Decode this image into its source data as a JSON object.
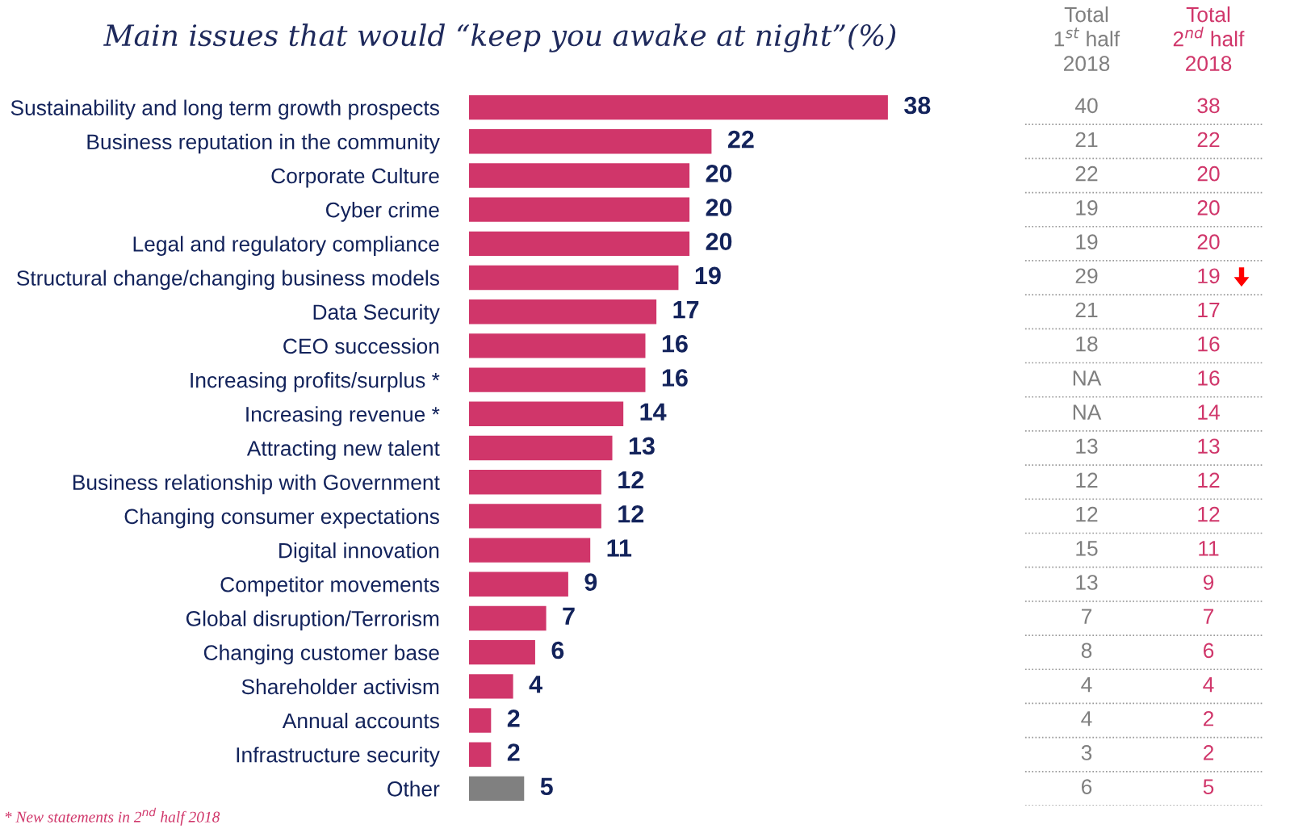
{
  "chart_data": [
    {
      "type": "bar",
      "orientation": "horizontal",
      "title": "Main issues that would “keep you awake at night”(%)",
      "categories": [
        "Sustainability and long term growth prospects",
        "Business reputation in the community",
        "Corporate Culture",
        "Cyber crime",
        "Legal and regulatory compliance",
        "Structural change/changing business models",
        "Data Security",
        "CEO succession",
        "Increasing profits/surplus *",
        "Increasing revenue *",
        "Attracting new talent",
        "Business relationship with Government",
        "Changing consumer expectations",
        "Digital innovation",
        "Competitor movements",
        "Global disruption/Terrorism",
        "Changing customer base",
        "Shareholder activism",
        "Annual accounts",
        "Infrastructure security",
        "Other"
      ],
      "values": [
        38,
        22,
        20,
        20,
        20,
        19,
        17,
        16,
        16,
        14,
        13,
        12,
        12,
        11,
        9,
        7,
        6,
        4,
        2,
        2,
        5
      ],
      "colors": [
        "#d0366a",
        "#d0366a",
        "#d0366a",
        "#d0366a",
        "#d0366a",
        "#d0366a",
        "#d0366a",
        "#d0366a",
        "#d0366a",
        "#d0366a",
        "#d0366a",
        "#d0366a",
        "#d0366a",
        "#d0366a",
        "#d0366a",
        "#d0366a",
        "#d0366a",
        "#d0366a",
        "#d0366a",
        "#d0366a",
        "#808080"
      ],
      "value_labels": [
        "38",
        "22",
        "20",
        "20",
        "20",
        "19",
        "17",
        "16",
        "16",
        "14",
        "13",
        "12",
        "12",
        "11",
        "9",
        "7",
        "6",
        "4",
        "2",
        "2",
        "5"
      ],
      "grid": false,
      "tick_labels": "y",
      "annotations": [
        "* New statements in 2$^{nd}$ half 2018"
      ]
    },
    {
      "type": "other",
      "colors": [
        "#7f7f7f",
        "#d0366a"
      ],
      "annotations": [
        "Total\n1$^{st}$ half\n2018",
        "Total\n2$^{nd}$ half\n2018",
        "40",
        "38",
        "21",
        "22",
        "22",
        "20",
        "19",
        "20",
        "19",
        "20",
        "29",
        "19",
        "21",
        "17",
        "18",
        "16",
        "NA",
        "16",
        "NA",
        "14",
        "13",
        "13",
        "12",
        "12",
        "12",
        "12",
        "15",
        "11",
        "13",
        "9",
        "7",
        "7",
        "8",
        "6",
        "4",
        "4",
        "4",
        "2",
        "3",
        "2",
        "6",
        "5"
      ]
    }
  ]
}
